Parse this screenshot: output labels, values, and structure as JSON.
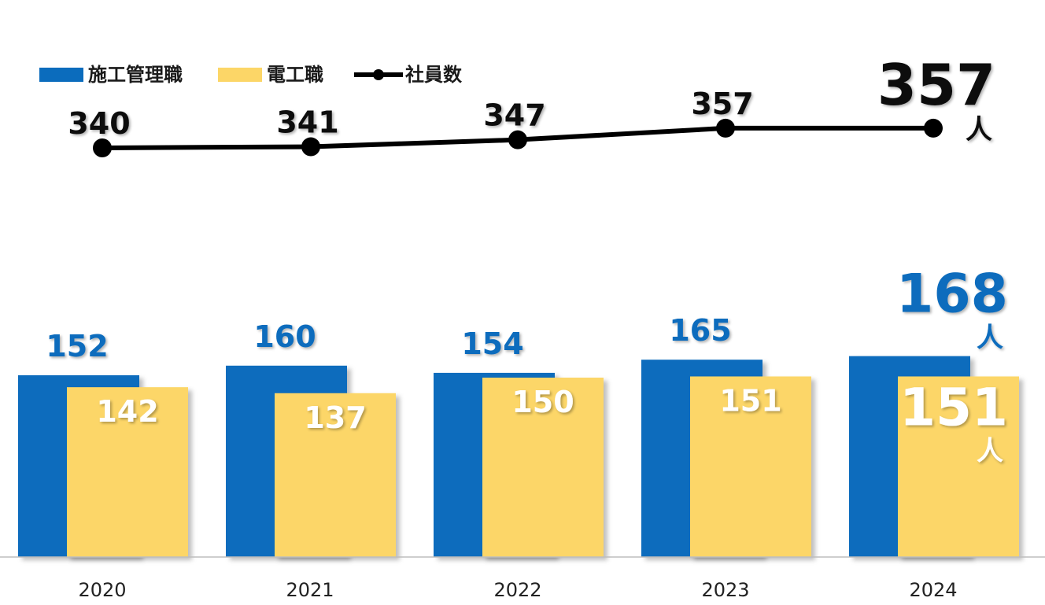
{
  "chart_data": {
    "type": "bar",
    "categories": [
      "2020",
      "2021",
      "2022",
      "2023",
      "2024"
    ],
    "series": [
      {
        "name": "施工管理職",
        "type": "bar",
        "color": "#0b6cbd",
        "values": [
          152,
          160,
          154,
          165,
          168
        ]
      },
      {
        "name": "電工職",
        "type": "bar",
        "color": "#fcd667",
        "values": [
          142,
          137,
          150,
          151,
          151
        ]
      },
      {
        "name": "社員数",
        "type": "line",
        "color": "#000000",
        "values": [
          340,
          341,
          347,
          357,
          357
        ]
      }
    ],
    "unit": "人",
    "legend_position": "top-left",
    "grid": false
  }
}
